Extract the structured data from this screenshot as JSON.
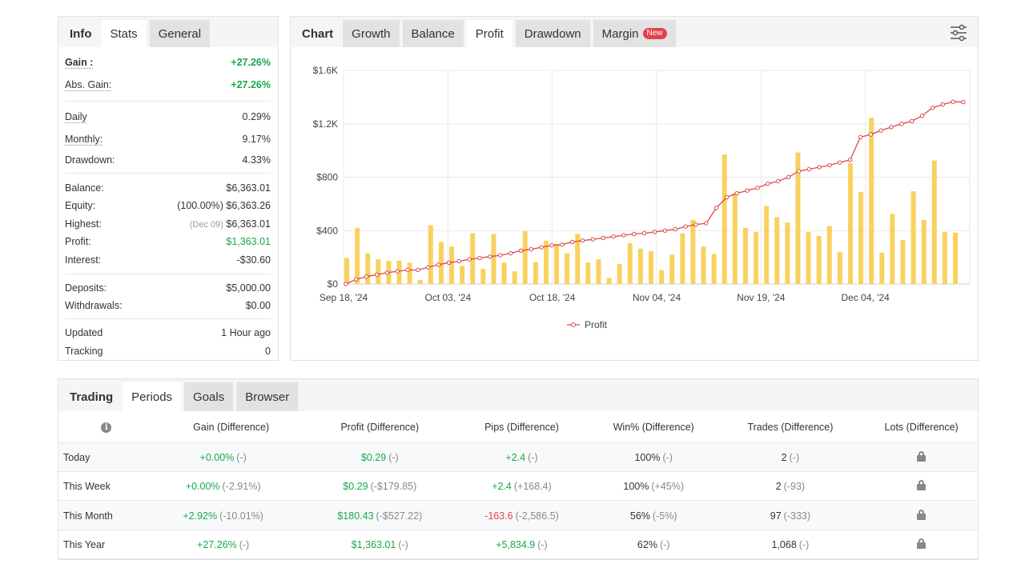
{
  "stats_panel": {
    "tabs": [
      "Info",
      "Stats",
      "General"
    ],
    "rows": [
      {
        "key": "Gain :",
        "value": "+27.26%"
      },
      {
        "key": "Abs. Gain:",
        "value": "+27.26%"
      },
      {
        "key": "Daily",
        "value": "0.29%"
      },
      {
        "key": "Monthly:",
        "value": "9.17%"
      },
      {
        "key": "Drawdown:",
        "value": "4.33%"
      },
      {
        "key": "Balance:",
        "value": "$6,363.01"
      },
      {
        "key": "Equity:",
        "value": "(100.00%) $6,363.26"
      },
      {
        "key": "Highest:",
        "prefix": "(Dec 09)",
        "value": "$6,363.01"
      },
      {
        "key": "Profit:",
        "value": "$1,363.01"
      },
      {
        "key": "Interest:",
        "value": "-$30.60"
      },
      {
        "key": "Deposits:",
        "value": "$5,000.00"
      },
      {
        "key": "Withdrawals:",
        "value": "$0.00"
      },
      {
        "key": "Updated",
        "value": "1 Hour ago"
      },
      {
        "key": "Tracking",
        "value": "0"
      }
    ]
  },
  "chart_panel": {
    "tabs": [
      "Chart",
      "Growth",
      "Balance",
      "Profit",
      "Drawdown",
      "Margin"
    ],
    "new_badge": "New",
    "active_tab": "Profit"
  },
  "chart_data": {
    "type": "bar+line",
    "y_ticks": [
      "$0",
      "$400",
      "$800",
      "$1.2K",
      "$1.6K"
    ],
    "ylim": [
      0,
      1600
    ],
    "x_ticks": [
      "Sep 18, '24",
      "Oct 03, '24",
      "Oct 18, '24",
      "Nov 04, '24",
      "Nov 19, '24",
      "Dec 04, '24"
    ],
    "legend": "Profit",
    "bar_color": "#f9d15f",
    "line_color": "#d94a4a",
    "bars": [
      195,
      420,
      230,
      185,
      175,
      175,
      160,
      30,
      440,
      315,
      280,
      135,
      380,
      115,
      375,
      160,
      95,
      395,
      165,
      325,
      300,
      230,
      375,
      160,
      185,
      45,
      150,
      305,
      265,
      245,
      105,
      220,
      380,
      480,
      280,
      225,
      970,
      680,
      420,
      390,
      585,
      500,
      460,
      985,
      390,
      360,
      435,
      240,
      905,
      690,
      1245,
      235,
      525,
      330,
      695,
      480,
      925,
      390,
      385
    ],
    "profit_line": [
      0,
      35,
      55,
      70,
      85,
      95,
      105,
      105,
      125,
      145,
      160,
      170,
      185,
      195,
      205,
      215,
      230,
      250,
      260,
      275,
      290,
      295,
      315,
      325,
      335,
      345,
      355,
      365,
      375,
      380,
      390,
      400,
      410,
      430,
      445,
      455,
      570,
      650,
      680,
      700,
      720,
      750,
      770,
      800,
      845,
      860,
      875,
      890,
      910,
      930,
      1100,
      1120,
      1150,
      1175,
      1200,
      1220,
      1260,
      1320,
      1345,
      1365,
      1363
    ]
  },
  "trading_panel": {
    "tabs": [
      "Trading",
      "Periods",
      "Goals",
      "Browser"
    ],
    "columns": [
      "Gain (Difference)",
      "Profit (Difference)",
      "Pips (Difference)",
      "Win% (Difference)",
      "Trades (Difference)",
      "Lots (Difference)"
    ],
    "info_icon": "i",
    "rows": [
      {
        "period": "Today",
        "gain": "+0.00%",
        "gain_d": "(-)",
        "profit": "$0.29",
        "profit_d": "(-)",
        "pips": "+2.4",
        "pips_d": "(-)",
        "win": "100%",
        "win_d": "(-)",
        "trades": "2",
        "trades_d": "(-)"
      },
      {
        "period": "This Week",
        "gain": "+0.00%",
        "gain_d": "(-2.91%)",
        "profit": "$0.29",
        "profit_d": "(-$179.85)",
        "pips": "+2.4",
        "pips_d": "(+168.4)",
        "win": "100%",
        "win_d": "(+45%)",
        "trades": "2",
        "trades_d": "(-93)"
      },
      {
        "period": "This Month",
        "gain": "+2.92%",
        "gain_d": "(-10.01%)",
        "profit": "$180.43",
        "profit_d": "(-$527.22)",
        "pips": "-163.6",
        "pips_d": "(-2,586.5)",
        "win": "56%",
        "win_d": "(-5%)",
        "trades": "97",
        "trades_d": "(-333)"
      },
      {
        "period": "This Year",
        "gain": "+27.26%",
        "gain_d": "(-)",
        "profit": "$1,363.01",
        "profit_d": "(-)",
        "pips": "+5,834.9",
        "pips_d": "(-)",
        "win": "62%",
        "win_d": "(-)",
        "trades": "1,068",
        "trades_d": "(-)"
      }
    ]
  }
}
